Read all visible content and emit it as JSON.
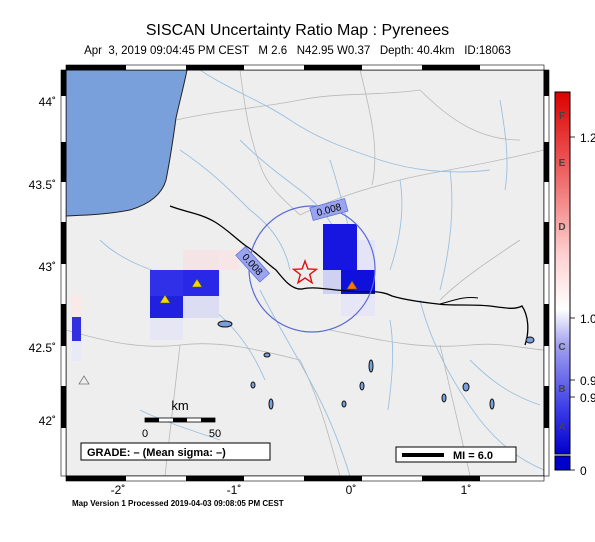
{
  "title": "SISCAN Uncertainty Ratio Map : Pyrenees",
  "subtitle": "Apr  3, 2019 09:04:45 PM CEST   M 2.6   N42.95 W0.37   Depth: 40.4km   ID:18063",
  "footer": "Map Version 1 Processed 2019-04-03 09:08:05 PM CEST",
  "map": {
    "lon_ticks": [
      "-2˚",
      "-1˚",
      "0˚",
      "1˚"
    ],
    "lat_ticks": [
      "44˚",
      "43.5˚",
      "43˚",
      "42.5˚",
      "42˚"
    ],
    "contour_labels": [
      "0.008",
      "0.008"
    ],
    "epicenter": {
      "lat": 42.95,
      "lon": -0.37,
      "symbol": "red-star"
    }
  },
  "scalebar": {
    "unit": "km",
    "labels": [
      "0",
      "50"
    ]
  },
  "grade_box": "GRADE: – (Mean sigma: –)",
  "mi_legend": "MI = 6.0",
  "colorbar": {
    "letters": [
      "F",
      "E",
      "D",
      "C",
      "B",
      "A"
    ],
    "values": [
      "1.2",
      "1.0",
      "0.9",
      "0.9",
      "0"
    ],
    "colors": {
      "low": "#0000cc",
      "mid": "#ffffff",
      "high": "#dd0000"
    }
  },
  "colors": {
    "land": "#eeeeee",
    "ocean": "#7aa0dc",
    "river": "#9cc0e0",
    "border": "#000000",
    "station_yellow": "#f5d800",
    "station_orange": "#ff7700"
  }
}
